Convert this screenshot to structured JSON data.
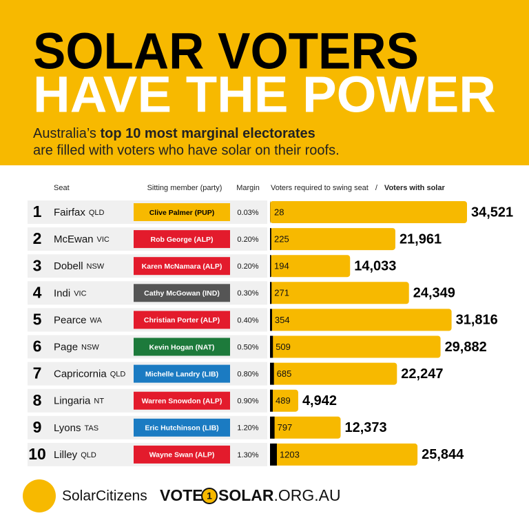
{
  "header": {
    "title_line1": "SOLAR VOTERS",
    "title_line2": "HAVE THE POWER",
    "subtitle_pre": "Australia’s ",
    "subtitle_bold": "top 10 most marginal electorates",
    "subtitle_line2": "are filled with voters who have solar on their roofs."
  },
  "chart_data": {
    "type": "bar",
    "column_headers": {
      "seat": "Seat",
      "member": "Sitting member (party)",
      "margin": "Margin",
      "separator": "/"
    },
    "ranks": [
      1,
      2,
      3,
      4,
      5,
      6,
      7,
      8,
      9,
      10
    ],
    "categories": [
      "Fairfax",
      "McEwan",
      "Dobell",
      "Indi",
      "Pearce",
      "Page",
      "Capricornia",
      "Lingaria",
      "Lyons",
      "Lilley"
    ],
    "states": [
      "QLD",
      "VIC",
      "NSW",
      "VIC",
      "WA",
      "NSW",
      "QLD",
      "NT",
      "TAS",
      "QLD"
    ],
    "members": [
      "Clive Palmer (PUP)",
      "Rob George (ALP)",
      "Karen McNamara (ALP)",
      "Cathy McGowan (IND)",
      "Christian Porter (ALP)",
      "Kevin Hogan (NAT)",
      "Michelle Landry (LIB)",
      "Warren Snowdon (ALP)",
      "Eric Hutchinson (LIB)",
      "Wayne Swan  (ALP)"
    ],
    "member_colors": [
      "#f7b900",
      "#e31b2c",
      "#e31b2c",
      "#555555",
      "#e31b2c",
      "#1d7a3b",
      "#1b7bc2",
      "#e31b2c",
      "#1b7bc2",
      "#e31b2c"
    ],
    "member_text_colors": [
      "#000000",
      "#ffffff",
      "#ffffff",
      "#ffffff",
      "#ffffff",
      "#ffffff",
      "#ffffff",
      "#ffffff",
      "#ffffff",
      "#ffffff"
    ],
    "margins": [
      "0.03%",
      "0.20%",
      "0.20%",
      "0.30%",
      "0.40%",
      "0.50%",
      "0.80%",
      "0.90%",
      "1.20%",
      "1.30%"
    ],
    "series": [
      {
        "name": "Voters required to swing seat",
        "color": "#000000",
        "values": [
          28,
          225,
          194,
          271,
          354,
          509,
          685,
          489,
          797,
          1203
        ]
      },
      {
        "name": "Voters with solar",
        "color": "#f7b900",
        "values": [
          34521,
          21961,
          14033,
          24349,
          31816,
          29882,
          22247,
          4942,
          12373,
          25844
        ],
        "value_labels": [
          "34,521",
          "21,961",
          "14,033",
          "24,349",
          "31,816",
          "29,882",
          "22,247",
          "4,942",
          "12,373",
          "25,844"
        ]
      }
    ],
    "xlim": [
      0,
      34521
    ]
  },
  "footer": {
    "brand": "SolarCitizens",
    "vote": "VOTE",
    "one": "1",
    "solar": "SOLAR",
    "domain": ".ORG.AU"
  }
}
